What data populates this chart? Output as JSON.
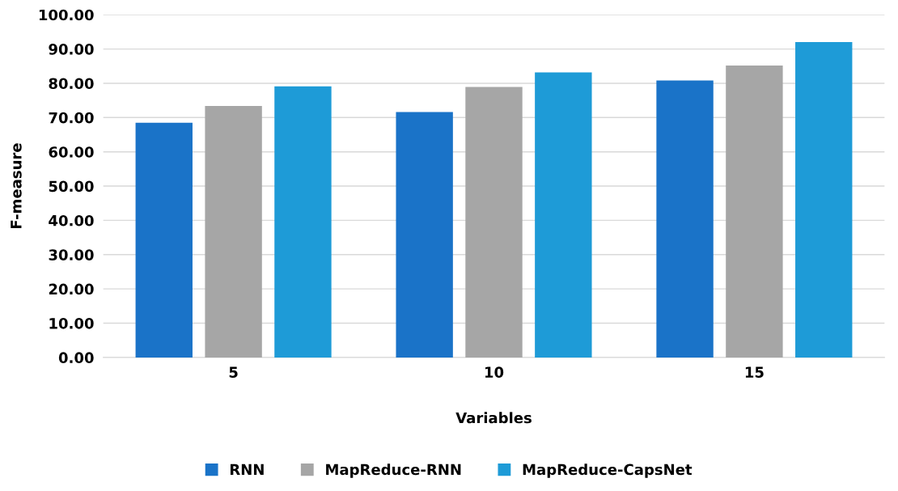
{
  "chart_data": {
    "type": "bar",
    "xlabel": "Variables",
    "ylabel": "F-measure",
    "categories": [
      "5",
      "10",
      "15"
    ],
    "series": [
      {
        "name": "RNN",
        "color": "#1a73c8",
        "values": [
          68.5,
          71.6,
          80.8
        ]
      },
      {
        "name": "MapReduce-RNN",
        "color": "#a6a6a6",
        "values": [
          73.4,
          78.9,
          85.2
        ]
      },
      {
        "name": "MapReduce-CapsNet",
        "color": "#1e9bd7",
        "values": [
          79.1,
          83.2,
          92.0
        ]
      }
    ],
    "ylim": [
      0,
      100
    ],
    "yticks": [
      {
        "value": 0,
        "label": "0.00"
      },
      {
        "value": 10,
        "label": "10.00"
      },
      {
        "value": 20,
        "label": "20.00"
      },
      {
        "value": 30,
        "label": "30.00"
      },
      {
        "value": 40,
        "label": "40.00"
      },
      {
        "value": 50,
        "label": "50.00"
      },
      {
        "value": 60,
        "label": "60.00"
      },
      {
        "value": 70,
        "label": "70.00"
      },
      {
        "value": 80,
        "label": "80.00"
      },
      {
        "value": 90,
        "label": "90.00"
      },
      {
        "value": 100,
        "label": "100.00"
      }
    ],
    "grid": "y",
    "legend": "bottom"
  }
}
